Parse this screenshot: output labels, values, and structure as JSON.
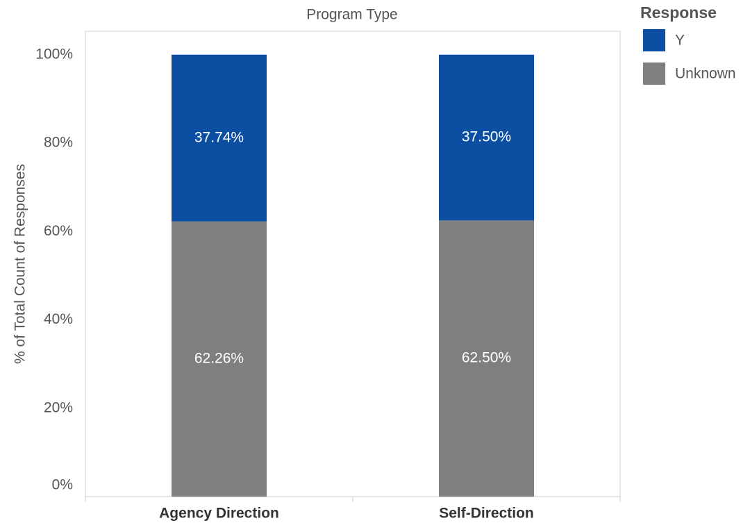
{
  "chart_data": {
    "type": "stacked_bar",
    "title": "Program Type",
    "y_label": "% of Total Count of Responses",
    "legend_title": "Response",
    "categories": [
      "Agency Direction",
      "Self-Direction"
    ],
    "series": [
      {
        "name": "Y",
        "color": "#0b4ea2",
        "values": [
          37.74,
          37.5
        ],
        "value_labels": [
          "37.74%",
          "37.50%"
        ]
      },
      {
        "name": "Unknown",
        "color": "#7f7f7f",
        "values": [
          62.26,
          62.5
        ],
        "value_labels": [
          "62.26%",
          "62.50%"
        ]
      }
    ],
    "ylim": [
      0,
      105.3
    ],
    "yticks": [
      {
        "value": 0,
        "label": "0%"
      },
      {
        "value": 20,
        "label": "20%"
      },
      {
        "value": 40,
        "label": "40%"
      },
      {
        "value": 60,
        "label": "60%"
      },
      {
        "value": 80,
        "label": "80%"
      },
      {
        "value": 100,
        "label": "100%"
      }
    ],
    "grid": false,
    "legend": "top-right"
  }
}
